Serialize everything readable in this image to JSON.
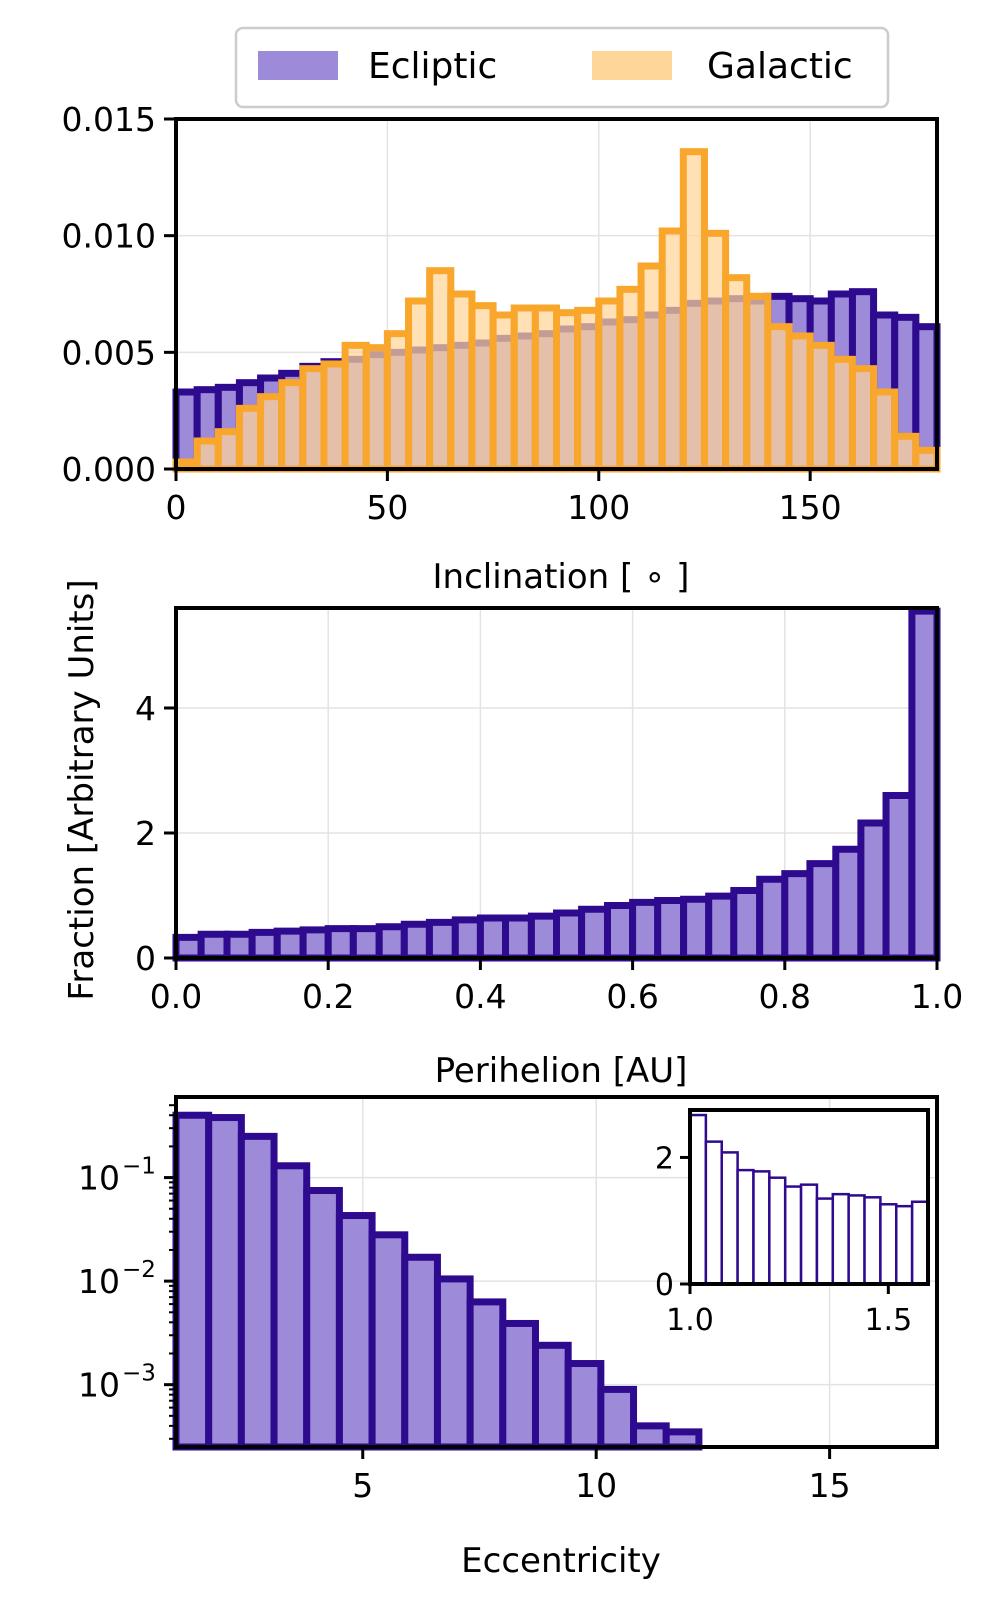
{
  "colors": {
    "ecliptic_fill": "#9d8ad8",
    "ecliptic_edge": "#2e0a8f",
    "galactic_fill": "#ffd699",
    "galactic_edge": "#f9a72c",
    "overlap_fill": "#c8a7a0",
    "overlap_cap": "#7d5564",
    "grid": "#e3e3e3",
    "axes": "#000000"
  },
  "legend": {
    "placement": "top-center",
    "entries": [
      "Ecliptic",
      "Galactic"
    ]
  },
  "shared": {
    "ylabel": "Fraction [Arbitrary Units]"
  },
  "chart_data": [
    {
      "id": "inclination",
      "type": "bar",
      "xlabel": "Inclination [$^\\circ$]",
      "xlabel_text": "Inclination [ ∘ ]",
      "xlim": [
        0,
        180
      ],
      "ylim": [
        0,
        0.015
      ],
      "xticks": [
        0,
        50,
        100,
        150
      ],
      "xtick_labels": [
        "0",
        "50",
        "100",
        "150"
      ],
      "yticks": [
        0,
        0.005,
        0.01,
        0.015
      ],
      "ytick_labels": [
        "0.000",
        "0.005",
        "0.010",
        "0.015"
      ],
      "grid": true,
      "bin_edges": [
        0,
        5,
        10,
        15,
        20,
        25,
        30,
        35,
        40,
        45,
        50,
        55,
        60,
        65,
        70,
        75,
        80,
        85,
        90,
        95,
        100,
        105,
        110,
        115,
        120,
        125,
        130,
        135,
        140,
        145,
        150,
        155,
        160,
        165,
        170,
        175,
        180
      ],
      "series": [
        {
          "name": "Ecliptic",
          "values": [
            0.0033,
            0.0034,
            0.0035,
            0.0037,
            0.0039,
            0.0041,
            0.0044,
            0.0046,
            0.0047,
            0.0049,
            0.005,
            0.0051,
            0.0052,
            0.0053,
            0.0054,
            0.0056,
            0.0057,
            0.0058,
            0.006,
            0.0061,
            0.0063,
            0.0064,
            0.0066,
            0.0068,
            0.0071,
            0.0072,
            0.0073,
            0.0072,
            0.0074,
            0.0073,
            0.0072,
            0.0075,
            0.0076,
            0.0066,
            0.0065,
            0.0061
          ]
        },
        {
          "name": "Galactic",
          "values": [
            0.0003,
            0.0012,
            0.0016,
            0.0026,
            0.0031,
            0.0037,
            0.0043,
            0.0045,
            0.0053,
            0.0052,
            0.0058,
            0.0072,
            0.0085,
            0.0075,
            0.007,
            0.0066,
            0.0069,
            0.0069,
            0.0067,
            0.0068,
            0.0072,
            0.0077,
            0.0087,
            0.0102,
            0.0136,
            0.0101,
            0.0082,
            0.0074,
            0.0061,
            0.0057,
            0.0053,
            0.0047,
            0.0043,
            0.0033,
            0.0014,
            0.0008
          ]
        }
      ]
    },
    {
      "id": "perihelion",
      "type": "bar",
      "xlabel": "Perihelion [AU]",
      "xlim": [
        0,
        1.0
      ],
      "ylim": [
        0,
        5.6
      ],
      "xticks": [
        0,
        0.2,
        0.4,
        0.6,
        0.8,
        1.0
      ],
      "xtick_labels": [
        "0.0",
        "0.2",
        "0.4",
        "0.6",
        "0.8",
        "1.0"
      ],
      "yticks": [
        0,
        2,
        4
      ],
      "ytick_labels": [
        "0",
        "2",
        "4"
      ],
      "grid": true,
      "bin_edges": [
        0,
        0.033,
        0.067,
        0.1,
        0.133,
        0.167,
        0.2,
        0.233,
        0.267,
        0.3,
        0.333,
        0.367,
        0.4,
        0.433,
        0.467,
        0.5,
        0.533,
        0.567,
        0.6,
        0.633,
        0.667,
        0.7,
        0.733,
        0.767,
        0.8,
        0.833,
        0.867,
        0.9,
        0.933,
        0.967,
        1.0
      ],
      "series": [
        {
          "name": "Ecliptic",
          "values": [
            0.33,
            0.38,
            0.38,
            0.41,
            0.43,
            0.45,
            0.47,
            0.47,
            0.5,
            0.54,
            0.57,
            0.61,
            0.64,
            0.64,
            0.67,
            0.72,
            0.78,
            0.84,
            0.89,
            0.92,
            0.94,
            0.99,
            1.08,
            1.26,
            1.35,
            1.51,
            1.74,
            2.16,
            2.6,
            5.55
          ]
        }
      ]
    },
    {
      "id": "eccentricity",
      "type": "bar",
      "xlabel": "Eccentricity",
      "xlim": [
        1,
        17.3
      ],
      "ylim": [
        0.00025,
        0.6
      ],
      "yscale": "log",
      "xticks": [
        5,
        10,
        15
      ],
      "xtick_labels": [
        "5",
        "10",
        "15"
      ],
      "yticks": [
        0.001,
        0.01,
        0.1
      ],
      "ytick_labels": [
        "10",
        "10",
        "10"
      ],
      "ytick_exponents": [
        "−3",
        "−2",
        "−1"
      ],
      "grid": true,
      "bin_edges": [
        1,
        1.7,
        2.4,
        3.1,
        3.8,
        4.5,
        5.2,
        5.9,
        6.6,
        7.3,
        8.0,
        8.7,
        9.4,
        10.1,
        10.8,
        11.5,
        12.2
      ],
      "series": [
        {
          "name": "Ecliptic",
          "values": [
            0.4,
            0.38,
            0.25,
            0.13,
            0.075,
            0.043,
            0.028,
            0.017,
            0.0105,
            0.0063,
            0.0039,
            0.0024,
            0.0016,
            0.0009,
            0.0004,
            0.00035
          ]
        }
      ],
      "inset": {
        "type": "bar",
        "xlim": [
          1.0,
          1.6
        ],
        "ylim": [
          0,
          2.75
        ],
        "xticks": [
          1.0,
          1.5
        ],
        "xtick_labels": [
          "1.0",
          "1.5"
        ],
        "yticks": [
          0,
          2
        ],
        "ytick_labels": [
          "0",
          "2"
        ],
        "bin_edges": [
          1.0,
          1.04,
          1.08,
          1.12,
          1.16,
          1.2,
          1.24,
          1.28,
          1.32,
          1.36,
          1.4,
          1.44,
          1.48,
          1.52,
          1.56,
          1.6
        ],
        "values": [
          2.67,
          2.25,
          2.08,
          1.8,
          1.78,
          1.68,
          1.54,
          1.57,
          1.35,
          1.42,
          1.4,
          1.37,
          1.26,
          1.23,
          1.3
        ]
      }
    }
  ]
}
